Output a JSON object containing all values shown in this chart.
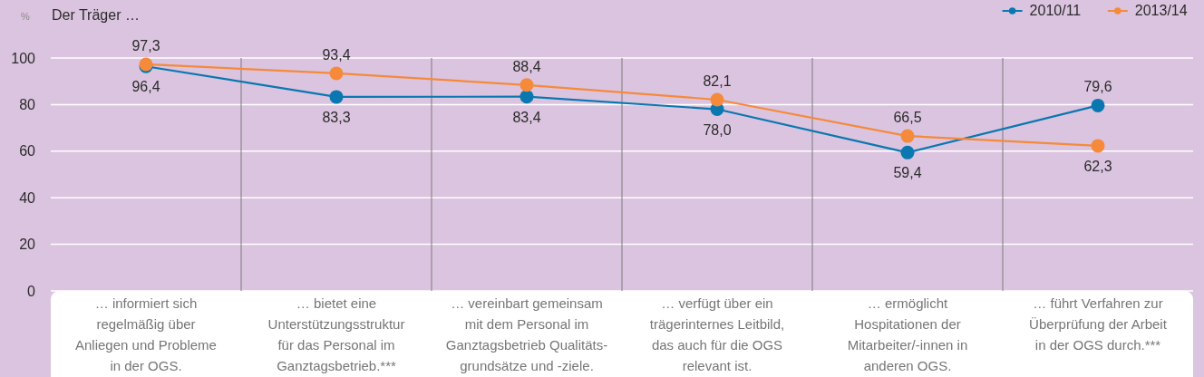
{
  "chart_data": {
    "type": "line",
    "title": "Der Träger …",
    "ylabel": "%",
    "categories": [
      "… informiert sich\nregelmäßig über\nAnliegen und Probleme\nin der OGS.",
      "… bietet eine\nUnterstützungsstruktur\nfür das Personal im\nGanztagsbetrieb.***",
      "… vereinbart gemeinsam\nmit dem Personal im\nGanztagsbetrieb Qualitäts-\ngrundsätze und -ziele.",
      "… verfügt über ein\nträgerinternes Leitbild,\ndas auch für die OGS\nrelevant ist.",
      "… ermöglicht\nHospitationen der\nMitarbeiter/-innen in\nanderen OGS.",
      "… führt Verfahren zur\nÜberprüfung der Arbeit\nin der OGS durch.***"
    ],
    "series": [
      {
        "name": "2010/11",
        "color": "#0a77b0",
        "values": [
          96.4,
          83.3,
          83.4,
          78.0,
          59.4,
          79.6
        ],
        "value_labels": [
          "96,4",
          "83,3",
          "83,4",
          "78,0",
          "59,4",
          "79,6"
        ]
      },
      {
        "name": "2013/14",
        "color": "#f58a3b",
        "values": [
          97.3,
          93.4,
          88.4,
          82.1,
          66.5,
          62.3
        ],
        "value_labels": [
          "97,3",
          "93,4",
          "88,4",
          "82,1",
          "66,5",
          "62,3"
        ]
      }
    ],
    "ylim": [
      0,
      100
    ],
    "yticks": [
      0,
      20,
      40,
      60,
      80,
      100
    ],
    "grid": true,
    "legend": "top right",
    "marker": "circle"
  }
}
